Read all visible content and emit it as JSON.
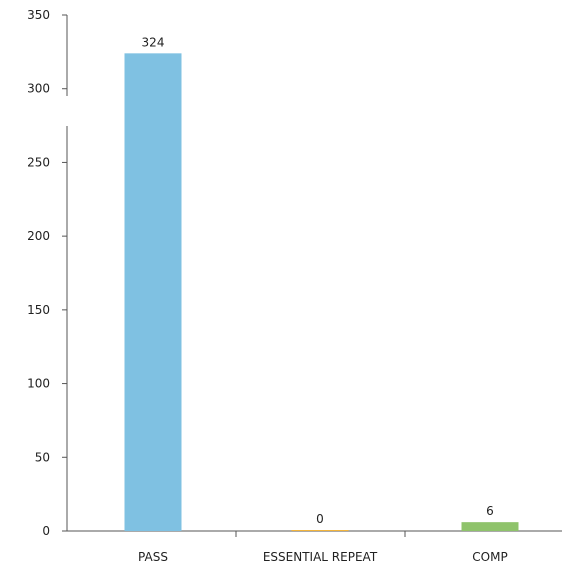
{
  "chart_data": {
    "type": "bar",
    "categories": [
      "PASS",
      "ESSENTIAL REPEAT",
      "COMP"
    ],
    "values": [
      324,
      0,
      6
    ],
    "data_labels": [
      "324",
      "0",
      "6"
    ],
    "colors": [
      "#7fc1e2",
      "#f2b43c",
      "#8fc36b"
    ],
    "ylim": [
      0,
      350
    ],
    "yticks": [
      0,
      50,
      100,
      150,
      200,
      250,
      300,
      350
    ],
    "ytick_labels": [
      "0",
      "50",
      "100",
      "150",
      "200",
      "250",
      "300",
      "350"
    ],
    "grid": false,
    "legend": "none"
  }
}
